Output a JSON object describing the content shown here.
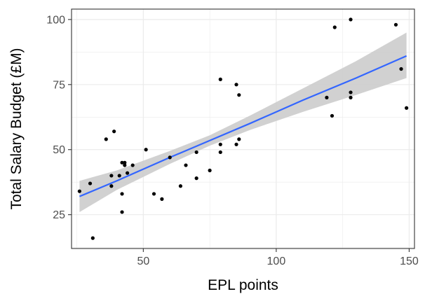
{
  "chart_data": {
    "type": "scatter",
    "xlabel": "EPL points",
    "ylabel": "Total Salary Budget (£M)",
    "xlim": [
      23,
      152
    ],
    "ylim": [
      12,
      104
    ],
    "x_ticks": [
      50,
      100,
      150
    ],
    "y_ticks": [
      25,
      50,
      75,
      100
    ],
    "grid": true,
    "points": [
      {
        "x": 26,
        "y": 34
      },
      {
        "x": 30,
        "y": 37
      },
      {
        "x": 31,
        "y": 16
      },
      {
        "x": 36,
        "y": 54
      },
      {
        "x": 38,
        "y": 40
      },
      {
        "x": 38,
        "y": 36
      },
      {
        "x": 39,
        "y": 57
      },
      {
        "x": 41,
        "y": 40
      },
      {
        "x": 42,
        "y": 45
      },
      {
        "x": 42,
        "y": 33
      },
      {
        "x": 42,
        "y": 26
      },
      {
        "x": 43,
        "y": 44
      },
      {
        "x": 43,
        "y": 45
      },
      {
        "x": 44,
        "y": 41
      },
      {
        "x": 46,
        "y": 44
      },
      {
        "x": 51,
        "y": 50
      },
      {
        "x": 54,
        "y": 33
      },
      {
        "x": 57,
        "y": 31
      },
      {
        "x": 60,
        "y": 47
      },
      {
        "x": 64,
        "y": 36
      },
      {
        "x": 66,
        "y": 44
      },
      {
        "x": 70,
        "y": 49
      },
      {
        "x": 70,
        "y": 39
      },
      {
        "x": 75,
        "y": 42
      },
      {
        "x": 79,
        "y": 77
      },
      {
        "x": 79,
        "y": 52
      },
      {
        "x": 79,
        "y": 49
      },
      {
        "x": 85,
        "y": 52
      },
      {
        "x": 85,
        "y": 75
      },
      {
        "x": 86,
        "y": 71
      },
      {
        "x": 86,
        "y": 54
      },
      {
        "x": 119,
        "y": 70
      },
      {
        "x": 121,
        "y": 63
      },
      {
        "x": 122,
        "y": 97
      },
      {
        "x": 128,
        "y": 100
      },
      {
        "x": 128,
        "y": 72
      },
      {
        "x": 128,
        "y": 70
      },
      {
        "x": 145,
        "y": 98
      },
      {
        "x": 147,
        "y": 81
      },
      {
        "x": 149,
        "y": 66
      }
    ],
    "fit_line": {
      "method": "linear",
      "color": "#3366ff",
      "band_color": "#cccccc",
      "points": [
        {
          "x": 26,
          "y": 32,
          "lower": 26,
          "upper": 38
        },
        {
          "x": 40,
          "y": 38,
          "lower": 34.5,
          "upper": 42
        },
        {
          "x": 60,
          "y": 47,
          "lower": 44.5,
          "upper": 49.5
        },
        {
          "x": 75,
          "y": 53.5,
          "lower": 51.5,
          "upper": 55.5
        },
        {
          "x": 90,
          "y": 60,
          "lower": 57.5,
          "upper": 63
        },
        {
          "x": 110,
          "y": 69,
          "lower": 64.5,
          "upper": 73.5
        },
        {
          "x": 130,
          "y": 77.5,
          "lower": 71,
          "upper": 84
        },
        {
          "x": 149,
          "y": 86,
          "lower": 77.5,
          "upper": 95
        }
      ]
    },
    "colors": {
      "points": "#000000",
      "panel_border": "#333333",
      "grid": "#ebebeb"
    }
  }
}
